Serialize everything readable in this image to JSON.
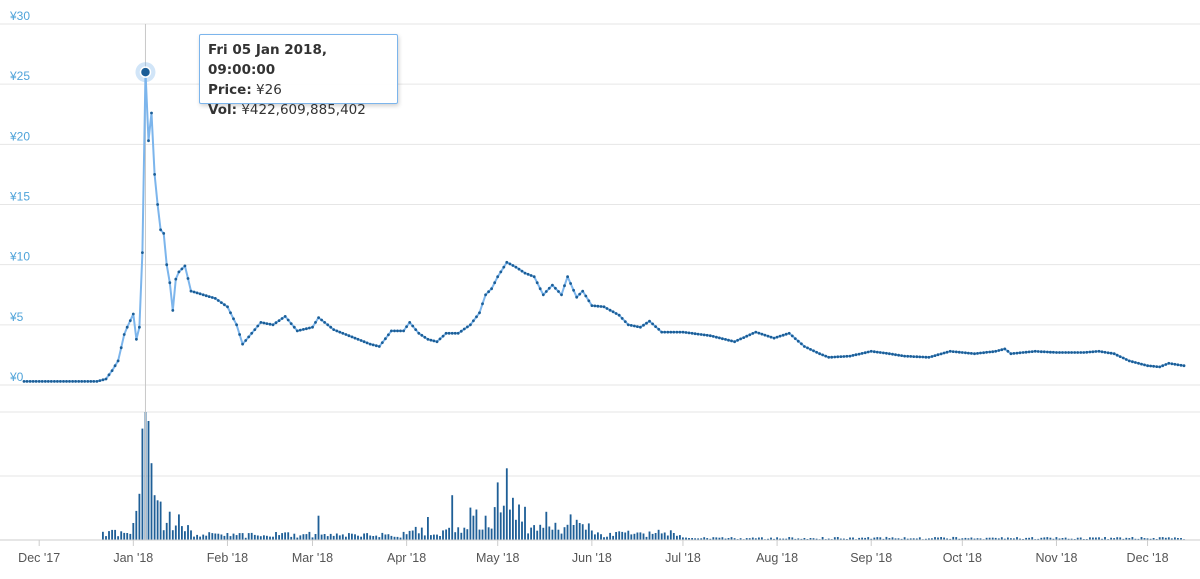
{
  "colors": {
    "price_line": "#7cb5ec",
    "price_marker": "#1b5e97",
    "volume_bar": "#1f5f97",
    "y_tick_text": "#4fa3d9",
    "x_tick_text": "#555555",
    "grid": "#e6e6e6",
    "crosshair": "#c8c8c8",
    "tooltip_border": "#7cb5ec"
  },
  "tooltip": {
    "date": "Fri 05 Jan 2018, 09:00:00",
    "price_label": "Price:",
    "price_value": "¥26",
    "vol_label": "Vol:",
    "vol_value": "¥422,609,885,402"
  },
  "chart_data": [
    {
      "type": "line",
      "name": "price",
      "x_range": [
        "2017-11-26",
        "2018-12-13"
      ],
      "ylim": [
        0,
        30
      ],
      "y_ticks": [
        "¥0",
        "¥5",
        "¥10",
        "¥15",
        "¥20",
        "¥25",
        "¥30"
      ],
      "y_tick_values": [
        0,
        5,
        10,
        15,
        20,
        25,
        30
      ],
      "grid": true,
      "highlight": {
        "x": "2018-01-05",
        "y": 26
      },
      "points": [
        [
          "2017-11-26",
          0.3
        ],
        [
          "2017-12-10",
          0.3
        ],
        [
          "2017-12-20",
          0.3
        ],
        [
          "2017-12-23",
          0.5
        ],
        [
          "2017-12-25",
          1.2
        ],
        [
          "2017-12-27",
          2.0
        ],
        [
          "2017-12-29",
          4.2
        ],
        [
          "2017-12-30",
          4.8
        ],
        [
          "2018-01-01",
          5.9
        ],
        [
          "2018-01-02",
          3.8
        ],
        [
          "2018-01-03",
          4.8
        ],
        [
          "2018-01-04",
          11.0
        ],
        [
          "2018-01-05",
          26.0
        ],
        [
          "2018-01-06",
          20.3
        ],
        [
          "2018-01-07",
          22.6
        ],
        [
          "2018-01-08",
          17.5
        ],
        [
          "2018-01-09",
          15.0
        ],
        [
          "2018-01-10",
          12.9
        ],
        [
          "2018-01-11",
          12.6
        ],
        [
          "2018-01-12",
          10.0
        ],
        [
          "2018-01-13",
          8.5
        ],
        [
          "2018-01-14",
          6.2
        ],
        [
          "2018-01-15",
          8.8
        ],
        [
          "2018-01-16",
          9.4
        ],
        [
          "2018-01-18",
          9.9
        ],
        [
          "2018-01-20",
          7.8
        ],
        [
          "2018-01-24",
          7.5
        ],
        [
          "2018-01-28",
          7.2
        ],
        [
          "2018-02-01",
          6.5
        ],
        [
          "2018-02-04",
          5.0
        ],
        [
          "2018-02-06",
          3.4
        ],
        [
          "2018-02-08",
          4.0
        ],
        [
          "2018-02-12",
          5.2
        ],
        [
          "2018-02-16",
          5.0
        ],
        [
          "2018-02-20",
          5.7
        ],
        [
          "2018-02-24",
          4.5
        ],
        [
          "2018-03-01",
          4.8
        ],
        [
          "2018-03-03",
          5.6
        ],
        [
          "2018-03-08",
          4.6
        ],
        [
          "2018-03-14",
          4.0
        ],
        [
          "2018-03-20",
          3.4
        ],
        [
          "2018-03-23",
          3.2
        ],
        [
          "2018-03-27",
          4.5
        ],
        [
          "2018-03-31",
          4.5
        ],
        [
          "2018-04-02",
          5.2
        ],
        [
          "2018-04-05",
          4.3
        ],
        [
          "2018-04-08",
          3.8
        ],
        [
          "2018-04-11",
          3.6
        ],
        [
          "2018-04-14",
          4.3
        ],
        [
          "2018-04-18",
          4.3
        ],
        [
          "2018-04-22",
          5.0
        ],
        [
          "2018-04-25",
          6.0
        ],
        [
          "2018-04-27",
          7.5
        ],
        [
          "2018-04-29",
          8.0
        ],
        [
          "2018-05-01",
          9.0
        ],
        [
          "2018-05-04",
          10.2
        ],
        [
          "2018-05-07",
          9.8
        ],
        [
          "2018-05-10",
          9.3
        ],
        [
          "2018-05-13",
          9.0
        ],
        [
          "2018-05-16",
          7.5
        ],
        [
          "2018-05-19",
          8.3
        ],
        [
          "2018-05-22",
          7.5
        ],
        [
          "2018-05-24",
          9.0
        ],
        [
          "2018-05-27",
          7.3
        ],
        [
          "2018-05-29",
          7.8
        ],
        [
          "2018-06-01",
          6.6
        ],
        [
          "2018-06-05",
          6.5
        ],
        [
          "2018-06-10",
          5.8
        ],
        [
          "2018-06-13",
          5.0
        ],
        [
          "2018-06-17",
          4.8
        ],
        [
          "2018-06-20",
          5.3
        ],
        [
          "2018-06-24",
          4.4
        ],
        [
          "2018-07-01",
          4.4
        ],
        [
          "2018-07-10",
          4.1
        ],
        [
          "2018-07-18",
          3.6
        ],
        [
          "2018-07-25",
          4.4
        ],
        [
          "2018-07-31",
          3.9
        ],
        [
          "2018-08-05",
          4.3
        ],
        [
          "2018-08-10",
          3.2
        ],
        [
          "2018-08-15",
          2.6
        ],
        [
          "2018-08-18",
          2.3
        ],
        [
          "2018-08-25",
          2.4
        ],
        [
          "2018-09-01",
          2.8
        ],
        [
          "2018-09-07",
          2.6
        ],
        [
          "2018-09-12",
          2.4
        ],
        [
          "2018-09-20",
          2.3
        ],
        [
          "2018-09-27",
          2.8
        ],
        [
          "2018-10-05",
          2.6
        ],
        [
          "2018-10-12",
          2.8
        ],
        [
          "2018-10-15",
          3.0
        ],
        [
          "2018-10-17",
          2.6
        ],
        [
          "2018-10-25",
          2.8
        ],
        [
          "2018-11-01",
          2.7
        ],
        [
          "2018-11-10",
          2.7
        ],
        [
          "2018-11-15",
          2.8
        ],
        [
          "2018-11-20",
          2.6
        ],
        [
          "2018-11-25",
          2.0
        ],
        [
          "2018-12-01",
          1.6
        ],
        [
          "2018-12-05",
          1.5
        ],
        [
          "2018-12-08",
          1.8
        ],
        [
          "2018-12-13",
          1.6
        ]
      ]
    },
    {
      "type": "bar",
      "name": "volume",
      "x_range": [
        "2017-11-26",
        "2018-12-13"
      ],
      "ylim": [
        0,
        1.0
      ],
      "grid": true,
      "segments": [
        {
          "start": "2017-11-26",
          "end": "2017-12-21",
          "level": 0.0
        },
        {
          "start": "2017-12-22",
          "end": "2017-12-31",
          "level": 0.05
        },
        {
          "start": "2018-01-01",
          "end": "2018-01-03",
          "level": 0.25
        },
        {
          "start": "2018-01-04",
          "end": "2018-01-04",
          "level": 0.87
        },
        {
          "start": "2018-01-05",
          "end": "2018-01-05",
          "level": 0.82
        },
        {
          "start": "2018-01-06",
          "end": "2018-01-10",
          "level": 0.55
        },
        {
          "start": "2018-01-11",
          "end": "2018-01-20",
          "level": 0.15
        },
        {
          "start": "2018-01-21",
          "end": "2018-02-28",
          "level": 0.04
        },
        {
          "start": "2018-03-01",
          "end": "2018-03-31",
          "level": 0.04
        },
        {
          "start": "2018-04-01",
          "end": "2018-04-20",
          "level": 0.07
        },
        {
          "start": "2018-04-21",
          "end": "2018-05-10",
          "level": 0.2
        },
        {
          "start": "2018-05-11",
          "end": "2018-05-31",
          "level": 0.1
        },
        {
          "start": "2018-06-01",
          "end": "2018-06-30",
          "level": 0.05
        },
        {
          "start": "2018-07-01",
          "end": "2018-12-13",
          "level": 0.015
        }
      ],
      "spikes": [
        [
          "2018-01-05",
          1.0
        ],
        [
          "2018-01-06",
          0.93
        ],
        [
          "2018-01-04",
          0.87
        ],
        [
          "2018-01-07",
          0.6
        ],
        [
          "2018-01-08",
          0.35
        ],
        [
          "2018-01-10",
          0.3
        ],
        [
          "2018-01-16",
          0.2
        ],
        [
          "2018-03-03",
          0.19
        ],
        [
          "2018-04-08",
          0.18
        ],
        [
          "2018-04-16",
          0.35
        ],
        [
          "2018-05-01",
          0.45
        ],
        [
          "2018-05-04",
          0.56
        ],
        [
          "2018-05-06",
          0.33
        ],
        [
          "2018-05-17",
          0.22
        ],
        [
          "2018-05-25",
          0.2
        ]
      ]
    },
    {
      "type": "x_axis",
      "tick_labels": [
        "Dec '17",
        "Jan '18",
        "Feb '18",
        "Mar '18",
        "Apr '18",
        "May '18",
        "Jun '18",
        "Jul '18",
        "Aug '18",
        "Sep '18",
        "Oct '18",
        "Nov '18",
        "Dec '18"
      ],
      "tick_dates": [
        "2017-12-01",
        "2018-01-01",
        "2018-02-01",
        "2018-03-01",
        "2018-04-01",
        "2018-05-01",
        "2018-06-01",
        "2018-07-01",
        "2018-08-01",
        "2018-09-01",
        "2018-10-01",
        "2018-11-01",
        "2018-12-01"
      ]
    }
  ]
}
